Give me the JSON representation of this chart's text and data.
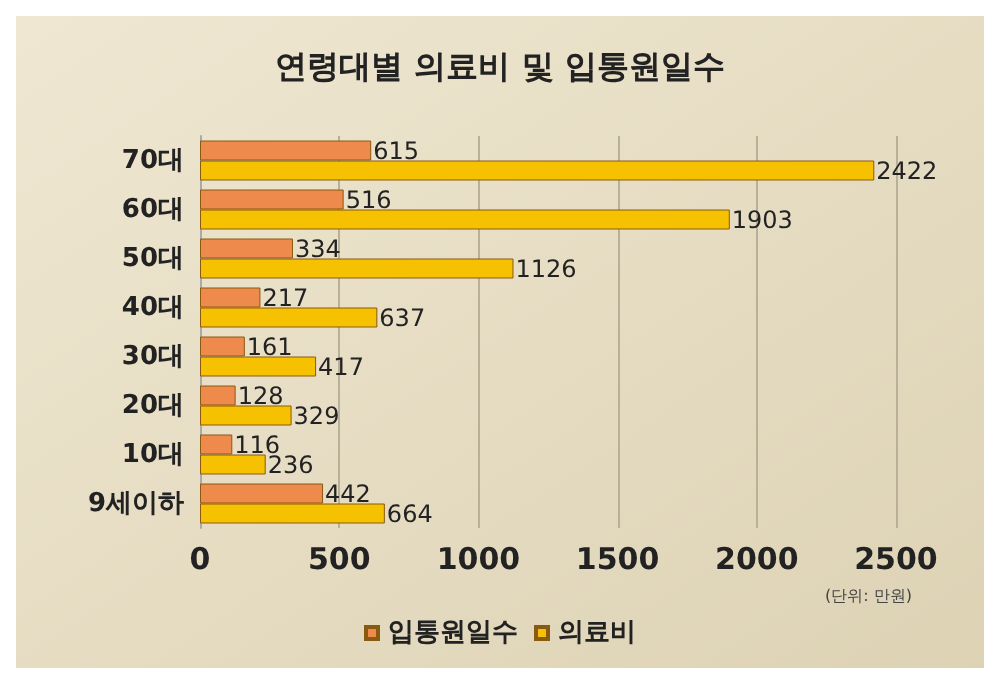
{
  "chart_data": {
    "type": "bar",
    "orientation": "horizontal",
    "title": "연령대별 의료비 및 입통원일수",
    "categories": [
      "70대",
      "60대",
      "50대",
      "40대",
      "30대",
      "20대",
      "10대",
      "9세이하"
    ],
    "series": [
      {
        "name": "입통원일수",
        "color": "#ee8a4c",
        "values": [
          615,
          516,
          334,
          217,
          161,
          128,
          116,
          442
        ]
      },
      {
        "name": "의료비",
        "color": "#f5c100",
        "values": [
          2422,
          1903,
          1126,
          637,
          417,
          329,
          236,
          664
        ]
      }
    ],
    "xlim": [
      0,
      2500
    ],
    "xticks": [
      0,
      500,
      1000,
      1500,
      2000,
      2500
    ],
    "grid": "x",
    "legend": "bottom",
    "data_labels": true,
    "annotations": [
      "(단위: 만원)"
    ]
  }
}
